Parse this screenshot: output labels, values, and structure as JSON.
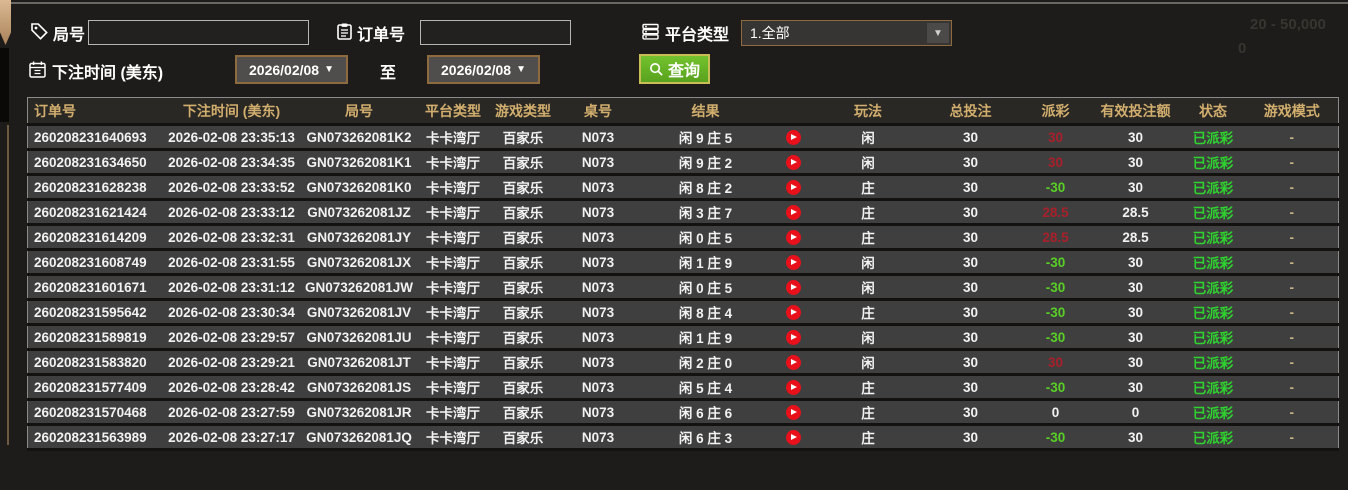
{
  "filters": {
    "round_label": "局号",
    "order_label": "订单号",
    "platform_label": "平台类型",
    "platform_selected": "1.全部",
    "time_label": "下注时间 (美东)",
    "date_from": "2026/02/08",
    "to_label": "至",
    "date_to": "2026/02/08",
    "search_label": "查询",
    "round_value": "",
    "order_value": ""
  },
  "background_artifacts": {
    "faint_line1": "20 - 50,000",
    "faint_line2": "0"
  },
  "colors": {
    "header_text": "#d2ae6e",
    "win_red": "#a8202a",
    "loss_green": "#58cf25",
    "status_green": "#2fd32f",
    "button_green": "#64b326",
    "date_border_brown": "#8d6b3f"
  },
  "table": {
    "headers": [
      "订单号",
      "下注时间 (美东)",
      "局号",
      "平台类型",
      "游戏类型",
      "桌号",
      "结果",
      "玩法",
      "总投注",
      "派彩",
      "有效投注额",
      "状态",
      "游戏模式"
    ],
    "rows": [
      {
        "order": "260208231640693",
        "time": "2026-02-08 23:35:13",
        "round": "GN073262081K2",
        "platform": "卡卡湾厅",
        "game": "百家乐",
        "table_no": "N073",
        "result": "闲 9 庄 5",
        "play": "闲",
        "total": "30",
        "payout": "30",
        "payout_class": "win",
        "valid": "30",
        "status": "已派彩",
        "mode": "-"
      },
      {
        "order": "260208231634650",
        "time": "2026-02-08 23:34:35",
        "round": "GN073262081K1",
        "platform": "卡卡湾厅",
        "game": "百家乐",
        "table_no": "N073",
        "result": "闲 9 庄 2",
        "play": "闲",
        "total": "30",
        "payout": "30",
        "payout_class": "win",
        "valid": "30",
        "status": "已派彩",
        "mode": "-"
      },
      {
        "order": "260208231628238",
        "time": "2026-02-08 23:33:52",
        "round": "GN073262081K0",
        "platform": "卡卡湾厅",
        "game": "百家乐",
        "table_no": "N073",
        "result": "闲 8 庄 2",
        "play": "庄",
        "total": "30",
        "payout": "-30",
        "payout_class": "loss",
        "valid": "30",
        "status": "已派彩",
        "mode": "-"
      },
      {
        "order": "260208231621424",
        "time": "2026-02-08 23:33:12",
        "round": "GN073262081JZ",
        "platform": "卡卡湾厅",
        "game": "百家乐",
        "table_no": "N073",
        "result": "闲 3 庄 7",
        "play": "庄",
        "total": "30",
        "payout": "28.5",
        "payout_class": "win",
        "valid": "28.5",
        "status": "已派彩",
        "mode": "-"
      },
      {
        "order": "260208231614209",
        "time": "2026-02-08 23:32:31",
        "round": "GN073262081JY",
        "platform": "卡卡湾厅",
        "game": "百家乐",
        "table_no": "N073",
        "result": "闲 0 庄 5",
        "play": "庄",
        "total": "30",
        "payout": "28.5",
        "payout_class": "win",
        "valid": "28.5",
        "status": "已派彩",
        "mode": "-"
      },
      {
        "order": "260208231608749",
        "time": "2026-02-08 23:31:55",
        "round": "GN073262081JX",
        "platform": "卡卡湾厅",
        "game": "百家乐",
        "table_no": "N073",
        "result": "闲 1 庄 9",
        "play": "闲",
        "total": "30",
        "payout": "-30",
        "payout_class": "loss",
        "valid": "30",
        "status": "已派彩",
        "mode": "-"
      },
      {
        "order": "260208231601671",
        "time": "2026-02-08 23:31:12",
        "round": "GN073262081JW",
        "platform": "卡卡湾厅",
        "game": "百家乐",
        "table_no": "N073",
        "result": "闲 0 庄 5",
        "play": "闲",
        "total": "30",
        "payout": "-30",
        "payout_class": "loss",
        "valid": "30",
        "status": "已派彩",
        "mode": "-"
      },
      {
        "order": "260208231595642",
        "time": "2026-02-08 23:30:34",
        "round": "GN073262081JV",
        "platform": "卡卡湾厅",
        "game": "百家乐",
        "table_no": "N073",
        "result": "闲 8 庄 4",
        "play": "庄",
        "total": "30",
        "payout": "-30",
        "payout_class": "loss",
        "valid": "30",
        "status": "已派彩",
        "mode": "-"
      },
      {
        "order": "260208231589819",
        "time": "2026-02-08 23:29:57",
        "round": "GN073262081JU",
        "platform": "卡卡湾厅",
        "game": "百家乐",
        "table_no": "N073",
        "result": "闲 1 庄 9",
        "play": "闲",
        "total": "30",
        "payout": "-30",
        "payout_class": "loss",
        "valid": "30",
        "status": "已派彩",
        "mode": "-"
      },
      {
        "order": "260208231583820",
        "time": "2026-02-08 23:29:21",
        "round": "GN073262081JT",
        "platform": "卡卡湾厅",
        "game": "百家乐",
        "table_no": "N073",
        "result": "闲 2 庄 0",
        "play": "闲",
        "total": "30",
        "payout": "30",
        "payout_class": "win",
        "valid": "30",
        "status": "已派彩",
        "mode": "-"
      },
      {
        "order": "260208231577409",
        "time": "2026-02-08 23:28:42",
        "round": "GN073262081JS",
        "platform": "卡卡湾厅",
        "game": "百家乐",
        "table_no": "N073",
        "result": "闲 5 庄 4",
        "play": "庄",
        "total": "30",
        "payout": "-30",
        "payout_class": "loss",
        "valid": "30",
        "status": "已派彩",
        "mode": "-"
      },
      {
        "order": "260208231570468",
        "time": "2026-02-08 23:27:59",
        "round": "GN073262081JR",
        "platform": "卡卡湾厅",
        "game": "百家乐",
        "table_no": "N073",
        "result": "闲 6 庄 6",
        "play": "庄",
        "total": "30",
        "payout": "0",
        "payout_class": "zero",
        "valid": "0",
        "status": "已派彩",
        "mode": "-"
      },
      {
        "order": "260208231563989",
        "time": "2026-02-08 23:27:17",
        "round": "GN073262081JQ",
        "platform": "卡卡湾厅",
        "game": "百家乐",
        "table_no": "N073",
        "result": "闲 6 庄 3",
        "play": "庄",
        "total": "30",
        "payout": "-30",
        "payout_class": "loss",
        "valid": "30",
        "status": "已派彩",
        "mode": "-"
      }
    ]
  }
}
